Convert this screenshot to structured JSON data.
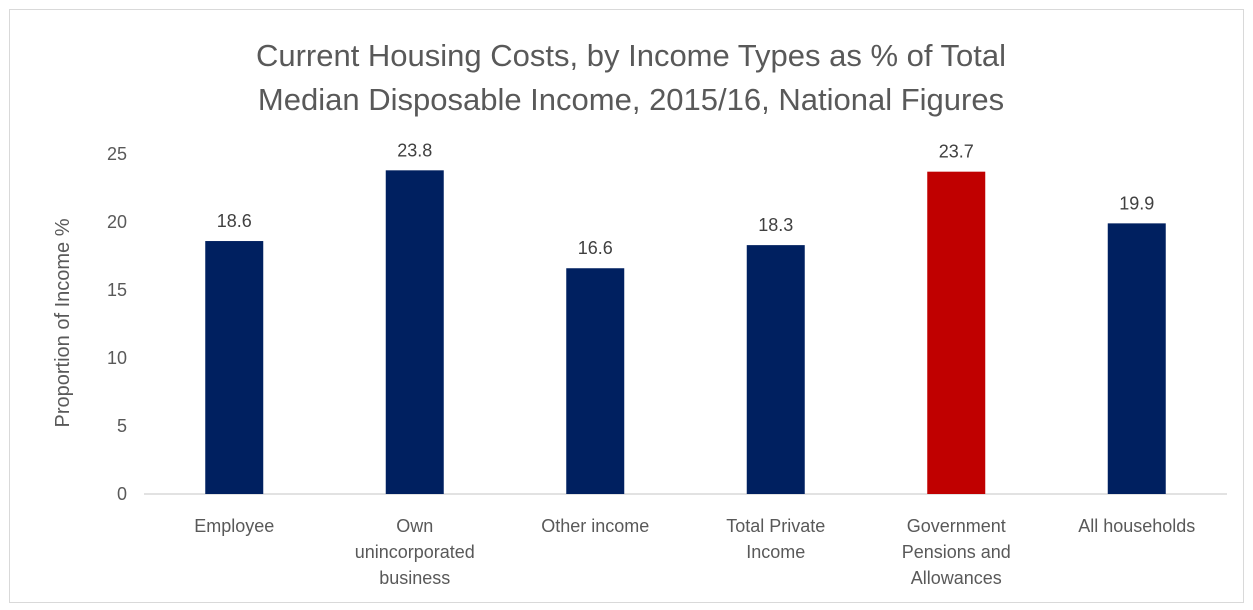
{
  "chart_data": {
    "type": "bar",
    "title_lines": [
      "Current Housing Costs, by Income Types as % of Total",
      "Median Disposable Income, 2015/16, National Figures"
    ],
    "xlabel": "",
    "ylabel": "Proportion of Income %",
    "ylim": [
      0,
      25
    ],
    "yticks": [
      0,
      5,
      10,
      15,
      20,
      25
    ],
    "grid": false,
    "categories": [
      [
        "Employee"
      ],
      [
        "Own",
        "unincorporated",
        "business"
      ],
      [
        "Other income"
      ],
      [
        "Total Private",
        "Income"
      ],
      [
        "Government",
        "Pensions and",
        "Allowances"
      ],
      [
        "All households"
      ]
    ],
    "values": [
      18.6,
      23.8,
      16.6,
      18.3,
      23.7,
      19.9
    ],
    "data_labels": [
      "18.6",
      "23.8",
      "16.6",
      "18.3",
      "23.7",
      "19.9"
    ],
    "colors": [
      "#002060",
      "#002060",
      "#002060",
      "#002060",
      "#C00000",
      "#002060"
    ]
  }
}
